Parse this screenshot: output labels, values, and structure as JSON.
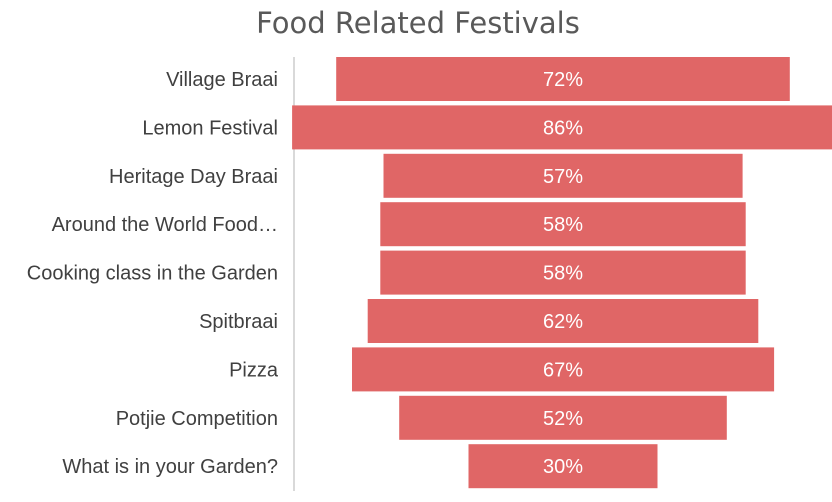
{
  "colors": {
    "bar": "#E06666",
    "axis_line": "#D9D9D9",
    "title_text": "#595959",
    "label_text": "#404040",
    "data_label_text": "#FFFFFF"
  },
  "chart_data": {
    "type": "bar",
    "orientation": "horizontal",
    "alignment": "centered-funnel",
    "title": "Food Related Festivals",
    "xlabel": "",
    "ylabel": "",
    "categories": [
      "Village Braai",
      "Lemon Festival",
      "Heritage Day Braai",
      "Around the World Food…",
      "Cooking class in the Garden",
      "Spitbraai",
      "Pizza",
      "Potjie Competition",
      "What is in your Garden?"
    ],
    "values": [
      72,
      86,
      57,
      58,
      58,
      62,
      67,
      52,
      30
    ],
    "value_labels": [
      "72%",
      "86%",
      "57%",
      "58%",
      "58%",
      "62%",
      "67%",
      "52%",
      "30%"
    ],
    "unit": "%",
    "grid": false,
    "legend": "none"
  }
}
